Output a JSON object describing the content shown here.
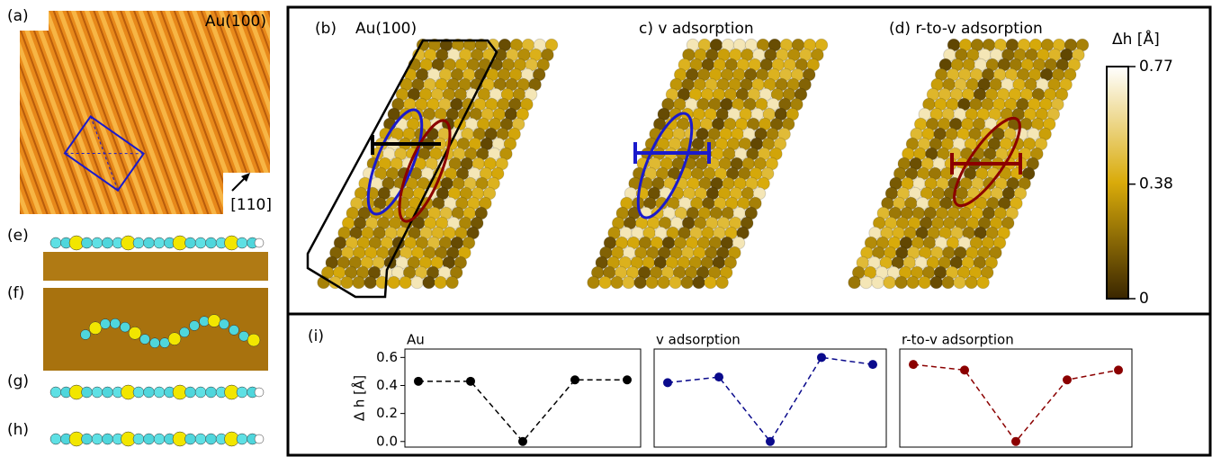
{
  "panels": {
    "a": "(a)",
    "a_title": "Au(100)",
    "a_dir": "[110]",
    "b": "(b)",
    "b_title": "Au(100)",
    "c": "c) v adsorption",
    "d": "(d) r-to-v adsorption",
    "e": "(e)",
    "f": "(f)",
    "g": "(g)",
    "h": "(h)",
    "i": "(i)"
  },
  "colorbar": {
    "label": "Δh [Å]",
    "ticks": [
      0,
      0.38,
      0.77
    ],
    "range": [
      0,
      0.77
    ]
  },
  "chart_data": [
    {
      "type": "line",
      "title": "Au",
      "ylabel": "Δ h [Å]",
      "categories": [
        null,
        null,
        null,
        null,
        null
      ],
      "color": "#000000",
      "values": [
        0.43,
        0.43,
        0.0,
        0.44,
        0.44
      ],
      "ylim": [
        -0.04,
        0.66
      ],
      "yticks": [
        {
          "value": 0,
          "label": "0.0"
        },
        0.2,
        0.4,
        0.6
      ]
    },
    {
      "type": "line",
      "title": "v adsorption",
      "categories": [
        null,
        null,
        null,
        null,
        null
      ],
      "color": "#0a0a8c",
      "values": [
        0.42,
        0.46,
        0.0,
        0.6,
        0.55
      ],
      "ylim": [
        -0.04,
        0.66
      ]
    },
    {
      "type": "line",
      "title": "r-to-v adsorption",
      "categories": [
        null,
        null,
        null,
        null,
        null
      ],
      "color": "#8b0000",
      "values": [
        0.55,
        0.51,
        0.0,
        0.44,
        0.51
      ],
      "ylim": [
        -0.04,
        0.66
      ]
    }
  ]
}
